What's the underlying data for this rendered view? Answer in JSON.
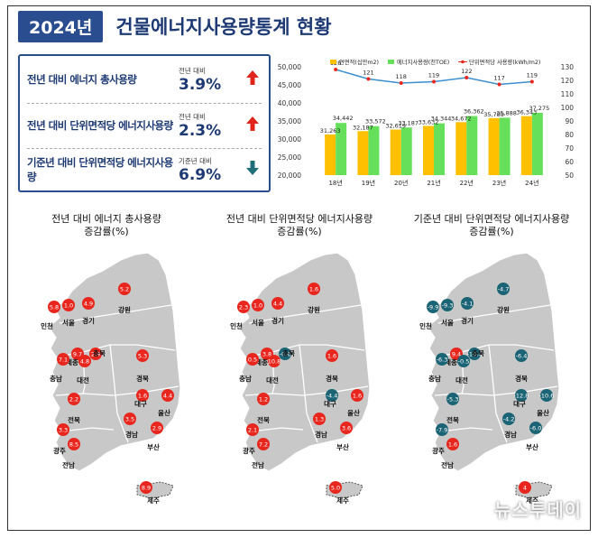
{
  "header": {
    "year": "2024년",
    "title": "건물에너지사용량통계 현황"
  },
  "summary": [
    {
      "label": "전년 대비 에너지 총사용량",
      "sub": "전년 대비",
      "value": "3.9%",
      "direction": "up"
    },
    {
      "label": "전년 대비 단위면적당 에너지사용량",
      "sub": "전년 대비",
      "value": "2.3%",
      "direction": "up"
    },
    {
      "label": "기준년 대비 단위면적당 에너지사용량",
      "sub": "기준년 대비",
      "value": "6.9%",
      "direction": "down"
    }
  ],
  "colors": {
    "navy": "#1e3a74",
    "up": "#e0231b",
    "down": "#1f6f7a",
    "bar_area": "#ffc000",
    "bar_energy": "#66e05a",
    "line": "#3e8fd0",
    "red_marker": "#e8261d",
    "teal_marker": "#1b6475",
    "land": "#c8c8c8"
  },
  "chart_data": {
    "type": "bar+line",
    "categories": [
      "18년",
      "19년",
      "20년",
      "21년",
      "22년",
      "23년",
      "24년"
    ],
    "series": [
      {
        "name": "연면적(십만m2)",
        "kind": "bar",
        "axis": "left",
        "values": [
          31263,
          32187,
          32619,
          33632,
          34672,
          35789,
          36343
        ]
      },
      {
        "name": "에너지사용량(천TOE)",
        "kind": "bar",
        "axis": "left",
        "values": [
          34442,
          33572,
          33187,
          34344,
          36362,
          35888,
          37275
        ]
      },
      {
        "name": "단위면적당 사용량(kWh/m2)",
        "kind": "line",
        "axis": "right",
        "values": [
          128,
          121,
          118,
          119,
          122,
          117,
          119
        ]
      }
    ],
    "left_ticks": [
      "50,000",
      "45,000",
      "40,000",
      "35,000",
      "30,000",
      "25,000",
      "20,000"
    ],
    "right_ticks": [
      "130",
      "120",
      "110",
      "100",
      "90",
      "80",
      "70",
      "60",
      "50"
    ],
    "ylim_left": [
      20000,
      50000
    ],
    "ylim_right": [
      50,
      130
    ],
    "legend": "top",
    "bar_labels": {
      "area": [
        "31,263",
        "32,187",
        "32,619",
        "33,632",
        "34,672",
        "35,789",
        "36,343"
      ],
      "energy": [
        "34,442",
        "33,572",
        "33,187",
        "34,344",
        "36,362",
        "35,888",
        "37,275"
      ],
      "line": [
        "128",
        "121",
        "118",
        "119",
        "122",
        "117",
        "119"
      ]
    }
  },
  "maps": [
    {
      "title": [
        "전년 대비 에너지 총사용량",
        "증감률(%)"
      ],
      "marker": "up",
      "regions": [
        {
          "name": "인천",
          "value": "5.8"
        },
        {
          "name": "서울",
          "value": "1.0"
        },
        {
          "name": "경기",
          "value": "4.9"
        },
        {
          "name": "강원",
          "value": "5.2"
        },
        {
          "name": "세종",
          "value": "9.7"
        },
        {
          "name": "충북",
          "value": "2.9"
        },
        {
          "name": "충남",
          "value": "7.1"
        },
        {
          "name": "대전",
          "value": "4.8"
        },
        {
          "name": "경북",
          "value": "5.3"
        },
        {
          "name": "대구",
          "value": "1.6"
        },
        {
          "name": "울산",
          "value": "4.4"
        },
        {
          "name": "전북",
          "value": "2.2"
        },
        {
          "name": "경남",
          "value": "3.5"
        },
        {
          "name": "부산",
          "value": "2.9"
        },
        {
          "name": "광주",
          "value": "3.3"
        },
        {
          "name": "전남",
          "value": "8.5"
        },
        {
          "name": "제주",
          "value": "8.9"
        }
      ]
    },
    {
      "title": [
        "전년 대비 단위면적당 에너지사용량",
        "증감률(%)"
      ],
      "marker": "mixed",
      "regions": [
        {
          "name": "인천",
          "value": "2.3"
        },
        {
          "name": "서울",
          "value": "1.0"
        },
        {
          "name": "경기",
          "value": "4.4"
        },
        {
          "name": "강원",
          "value": "1.6"
        },
        {
          "name": "세종",
          "value": "3.8"
        },
        {
          "name": "충북",
          "value": "-0.6"
        },
        {
          "name": "충남",
          "value": "0.5"
        },
        {
          "name": "대전",
          "value": "10.8"
        },
        {
          "name": "경북",
          "value": "1.6"
        },
        {
          "name": "대구",
          "value": "-4.4"
        },
        {
          "name": "울산",
          "value": "1.6"
        },
        {
          "name": "전북",
          "value": "1.2"
        },
        {
          "name": "경남",
          "value": "1.3"
        },
        {
          "name": "부산",
          "value": "3.6"
        },
        {
          "name": "광주",
          "value": "2.1"
        },
        {
          "name": "전남",
          "value": "7.2"
        },
        {
          "name": "제주",
          "value": "5.0"
        }
      ]
    },
    {
      "title": [
        "기준년 대비 단위면적당 에너지사용량",
        "증감률(%)"
      ],
      "marker": "mixed",
      "regions": [
        {
          "name": "인천",
          "value": "-9.9"
        },
        {
          "name": "서울",
          "value": "-9.3"
        },
        {
          "name": "경기",
          "value": "-4.1"
        },
        {
          "name": "강원",
          "value": "-4.7"
        },
        {
          "name": "세종",
          "value": "9.4"
        },
        {
          "name": "충북",
          "value": "-10.4"
        },
        {
          "name": "충남",
          "value": "-6.3"
        },
        {
          "name": "대전",
          "value": "-0.5"
        },
        {
          "name": "경북",
          "value": "-6.4"
        },
        {
          "name": "대구",
          "value": "-12.8"
        },
        {
          "name": "울산",
          "value": "-10.6"
        },
        {
          "name": "전북",
          "value": "-5.3"
        },
        {
          "name": "경남",
          "value": "-4.2"
        },
        {
          "name": "부산",
          "value": "-6.0"
        },
        {
          "name": "광주",
          "value": "-7.9"
        },
        {
          "name": "전남",
          "value": "1.6"
        },
        {
          "name": "제주",
          "value": "4"
        }
      ]
    }
  ],
  "watermark": "뉴스투데이"
}
